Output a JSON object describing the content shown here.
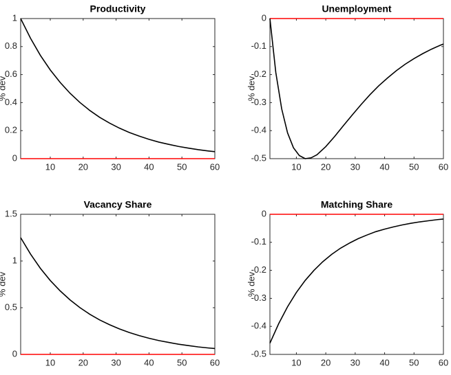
{
  "chart_data": [
    {
      "type": "line",
      "title": "Productivity",
      "ylabel": "% dev",
      "x": [
        1,
        4,
        7,
        10,
        13,
        16,
        19,
        22,
        25,
        28,
        31,
        34,
        37,
        40,
        43,
        46,
        49,
        52,
        55,
        58,
        60
      ],
      "series": [
        {
          "color": "#000000",
          "values": [
            1,
            0.859,
            0.737,
            0.633,
            0.544,
            0.467,
            0.401,
            0.344,
            0.295,
            0.254,
            0.218,
            0.187,
            0.161,
            0.138,
            0.118,
            0.102,
            0.087,
            0.075,
            0.064,
            0.055,
            0.05
          ]
        }
      ],
      "hline": 0,
      "hline_color": "#ff0000",
      "xlim": [
        1,
        60
      ],
      "xticks": [
        10,
        20,
        30,
        40,
        50,
        60
      ],
      "ylim": [
        0,
        1
      ],
      "yticks": [
        0,
        0.2,
        0.4,
        0.6,
        0.8,
        1
      ]
    },
    {
      "type": "line",
      "title": "Unemployment",
      "ylabel": "% dev",
      "x": [
        1,
        3,
        5,
        7,
        9,
        11,
        13,
        15,
        17,
        20,
        23,
        26,
        29,
        32,
        35,
        38,
        41,
        44,
        47,
        50,
        53,
        56,
        59,
        60
      ],
      "series": [
        {
          "color": "#000000",
          "values": [
            0,
            -0.192,
            -0.322,
            -0.408,
            -0.461,
            -0.489,
            -0.5,
            -0.497,
            -0.486,
            -0.457,
            -0.421,
            -0.382,
            -0.344,
            -0.307,
            -0.272,
            -0.24,
            -0.212,
            -0.186,
            -0.163,
            -0.143,
            -0.125,
            -0.109,
            -0.095,
            -0.091
          ]
        }
      ],
      "hline": 0,
      "hline_color": "#ff0000",
      "xlim": [
        1,
        60
      ],
      "xticks": [
        10,
        20,
        30,
        40,
        50,
        60
      ],
      "ylim": [
        -0.5,
        0
      ],
      "yticks": [
        -0.5,
        -0.4,
        -0.3,
        -0.2,
        -0.1,
        0
      ]
    },
    {
      "type": "line",
      "title": "Vacancy Share",
      "ylabel": "% dev",
      "x": [
        1,
        4,
        7,
        10,
        13,
        16,
        19,
        22,
        25,
        28,
        31,
        34,
        37,
        40,
        43,
        46,
        49,
        52,
        55,
        58,
        60
      ],
      "series": [
        {
          "color": "#000000",
          "values": [
            1.25,
            1.074,
            0.921,
            0.791,
            0.68,
            0.584,
            0.501,
            0.43,
            0.369,
            0.318,
            0.273,
            0.234,
            0.201,
            0.173,
            0.148,
            0.128,
            0.109,
            0.094,
            0.08,
            0.069,
            0.063
          ]
        }
      ],
      "hline": 0,
      "hline_color": "#ff0000",
      "xlim": [
        1,
        60
      ],
      "xticks": [
        10,
        20,
        30,
        40,
        50,
        60
      ],
      "ylim": [
        0,
        1.5
      ],
      "yticks": [
        0,
        0.5,
        1,
        1.5
      ]
    },
    {
      "type": "line",
      "title": "Matching Share",
      "ylabel": "% dev",
      "x": [
        1,
        4,
        7,
        10,
        13,
        16,
        19,
        22,
        25,
        28,
        31,
        34,
        37,
        40,
        43,
        46,
        49,
        52,
        55,
        58,
        60
      ],
      "series": [
        {
          "color": "#000000",
          "values": [
            -0.46,
            -0.39,
            -0.33,
            -0.279,
            -0.236,
            -0.2,
            -0.169,
            -0.143,
            -0.121,
            -0.103,
            -0.087,
            -0.074,
            -0.062,
            -0.053,
            -0.045,
            -0.038,
            -0.032,
            -0.027,
            -0.023,
            -0.019,
            -0.017
          ]
        }
      ],
      "hline": 0,
      "hline_color": "#ff0000",
      "xlim": [
        1,
        60
      ],
      "xticks": [
        10,
        20,
        30,
        40,
        50,
        60
      ],
      "ylim": [
        -0.5,
        0
      ],
      "yticks": [
        -0.5,
        -0.4,
        -0.3,
        -0.2,
        -0.1,
        0
      ]
    }
  ]
}
